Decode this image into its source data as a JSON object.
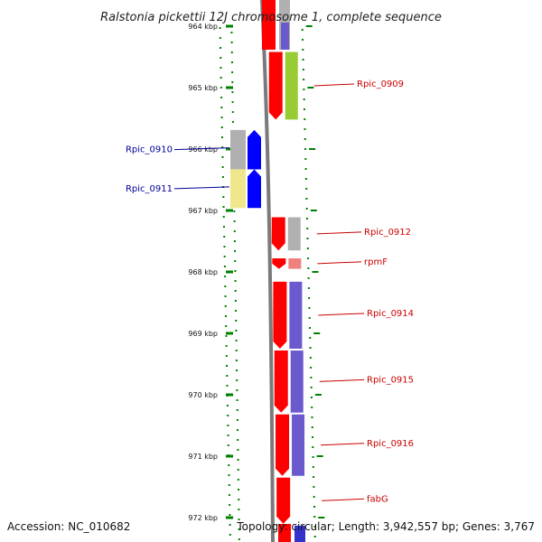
{
  "title": "Ralstonia pickettii 12J chromosome 1, complete sequence",
  "accession": "Accession: NC_010682",
  "topology": "Topology: circular; Length: 3,942,557 bp; Genes: 3,767",
  "colors": {
    "forward_cds": "#ff0000",
    "reverse_cds": "#0000ff",
    "track_blue": "#6a5acd",
    "track_grey": "#b0b0b0",
    "track_green": "#99cc33",
    "track_yellow": "#f0e68c",
    "dots": "#008000",
    "label_forward": "#cc0000",
    "label_reverse": "#000099"
  },
  "axis": {
    "unit": "kbp",
    "ticks": [
      {
        "label": "964 kbp",
        "value": 964
      },
      {
        "label": "965 kbp",
        "value": 965
      },
      {
        "label": "966 kbp",
        "value": 966
      },
      {
        "label": "967 kbp",
        "value": 967
      },
      {
        "label": "968 kbp",
        "value": 968
      },
      {
        "label": "969 kbp",
        "value": 969
      },
      {
        "label": "970 kbp",
        "value": 970
      },
      {
        "label": "971 kbp",
        "value": 971
      },
      {
        "label": "972 kbp",
        "value": 972
      }
    ]
  },
  "genes": [
    {
      "name": "Rpic_0909",
      "strand": "+",
      "start": 964.42,
      "end": 965.52,
      "label": "Rpic_0909"
    },
    {
      "name": "Rpic_0910",
      "strand": "-",
      "start": 965.69,
      "end": 966.33,
      "label": "Rpic_0910"
    },
    {
      "name": "Rpic_0911",
      "strand": "-",
      "start": 966.33,
      "end": 966.96,
      "label": "Rpic_0911"
    },
    {
      "name": "Rpic_0912",
      "strand": "+",
      "start": 967.11,
      "end": 967.65,
      "label": "Rpic_0912"
    },
    {
      "name": "rpmF",
      "strand": "+",
      "start": 967.78,
      "end": 967.95,
      "label": "rpmF"
    },
    {
      "name": "Rpic_0914",
      "strand": "+",
      "start": 968.16,
      "end": 969.25,
      "label": "Rpic_0914"
    },
    {
      "name": "Rpic_0915",
      "strand": "+",
      "start": 969.28,
      "end": 970.29,
      "label": "Rpic_0915"
    },
    {
      "name": "Rpic_0916",
      "strand": "+",
      "start": 970.32,
      "end": 971.32,
      "label": "Rpic_0916"
    },
    {
      "name": "fabG",
      "strand": "+",
      "start": 971.35,
      "end": 972.1,
      "label": "fabG"
    }
  ]
}
